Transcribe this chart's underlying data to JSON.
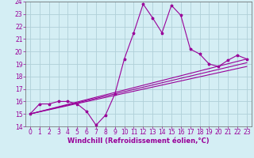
{
  "title": "",
  "xlabel": "Windchill (Refroidissement éolien,°C)",
  "ylabel": "",
  "bg_color": "#d4eef4",
  "grid_color": "#b0d0d8",
  "line_color": "#990099",
  "spine_color": "#666666",
  "xlim": [
    -0.5,
    23.5
  ],
  "ylim": [
    14,
    24
  ],
  "yticks": [
    14,
    15,
    16,
    17,
    18,
    19,
    20,
    21,
    22,
    23,
    24
  ],
  "xticks": [
    0,
    1,
    2,
    3,
    4,
    5,
    6,
    7,
    8,
    9,
    10,
    11,
    12,
    13,
    14,
    15,
    16,
    17,
    18,
    19,
    20,
    21,
    22,
    23
  ],
  "series1_x": [
    0,
    1,
    2,
    3,
    4,
    5,
    6,
    7,
    8,
    9,
    10,
    11,
    12,
    13,
    14,
    15,
    16,
    17,
    18,
    19,
    20,
    21,
    22,
    23
  ],
  "series1_y": [
    15.0,
    15.8,
    15.8,
    16.0,
    16.0,
    15.8,
    15.2,
    14.1,
    14.9,
    16.6,
    19.4,
    21.5,
    23.8,
    22.7,
    21.5,
    23.7,
    22.9,
    20.2,
    19.8,
    19.0,
    18.8,
    19.3,
    19.7,
    19.4
  ],
  "series2_x": [
    0,
    23
  ],
  "series2_y": [
    15.0,
    19.4
  ],
  "series3_x": [
    0,
    23
  ],
  "series3_y": [
    15.0,
    19.1
  ],
  "series4_x": [
    0,
    23
  ],
  "series4_y": [
    15.0,
    18.8
  ],
  "tick_fontsize": 5.5,
  "xlabel_fontsize": 6.0,
  "marker_size": 2.5,
  "linewidth": 0.8
}
